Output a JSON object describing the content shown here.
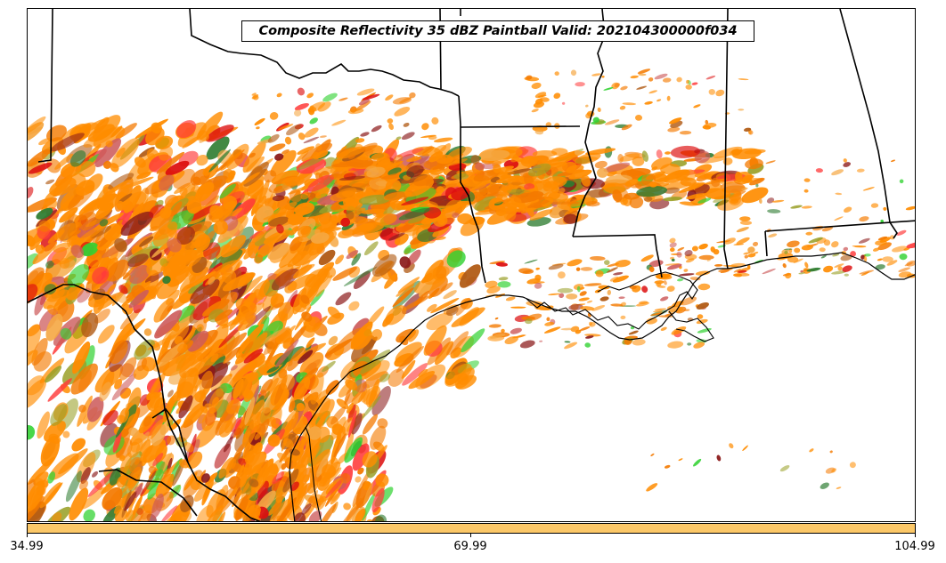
{
  "title": "Composite Reflectivity 35 dBZ Paintball Valid: 202104300000f034",
  "colorbar": {
    "color": "#fcc868",
    "ticks": [
      "34.99",
      "69.99",
      "104.99"
    ]
  },
  "paint_colors": [
    "#ff8c00",
    "#ff8c00",
    "#f47a00",
    "#dd1010",
    "#ff3b3b",
    "#8b1a1a",
    "#2f7d32",
    "#32d232",
    "#9aa028",
    "#f5a742",
    "#b05a14",
    "#cd5c5c"
  ],
  "map_colors": {
    "boundaries": "#000000",
    "background": "#ffffff"
  }
}
